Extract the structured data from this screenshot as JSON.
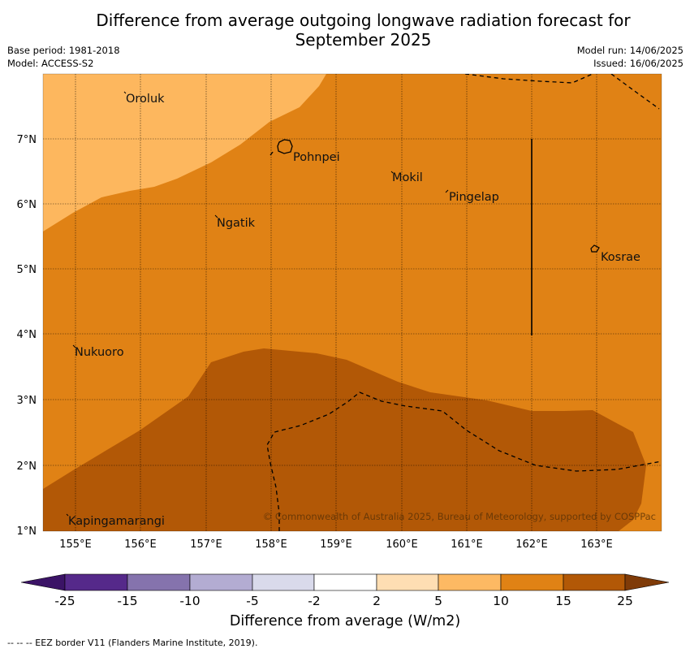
{
  "title_line1": "Difference from average outgoing longwave radiation forecast for",
  "title_line2": "September 2025",
  "meta_left": {
    "base_period": "Base period: 1981-2018",
    "model": "Model: ACCESS-S2"
  },
  "meta_right": {
    "model_run": "Model run: 14/06/2025",
    "issued": "Issued: 16/06/2025"
  },
  "map": {
    "lon_ticks": [
      "155°E",
      "156°E",
      "157°E",
      "158°E",
      "159°E",
      "160°E",
      "161°E",
      "162°E",
      "163°E"
    ],
    "lat_ticks": [
      "7°N",
      "6°N",
      "5°N",
      "4°N",
      "3°N",
      "2°N",
      "1°N"
    ],
    "places": [
      "Oroluk",
      "Pohnpei",
      "Mokil",
      "Pingelap",
      "Ngatik",
      "Kosrae",
      "Nukuoro",
      "Kapingamarangi"
    ],
    "copyright": "© Commonwealth of Australia 2025, Bureau of Meteorology, supported by COSPPac"
  },
  "colorbar": {
    "labels": [
      "-25",
      "-15",
      "-10",
      "-5",
      "-2",
      "2",
      "5",
      "10",
      "15",
      "25"
    ],
    "colors": [
      "#3b1366",
      "#55298a",
      "#8573ad",
      "#b3acd2",
      "#d9daeb",
      "#ffffff",
      "#fedeb3",
      "#fdb963",
      "#e08215",
      "#b25806",
      "#7f3b08"
    ],
    "title": "Difference from average (W/m2)"
  },
  "colors": {
    "light": "#fdb75e",
    "mid": "#e08215",
    "dark": "#b25806"
  },
  "footer": "--  --  -- EEZ border V11 (Flanders Marine Institute, 2019)."
}
